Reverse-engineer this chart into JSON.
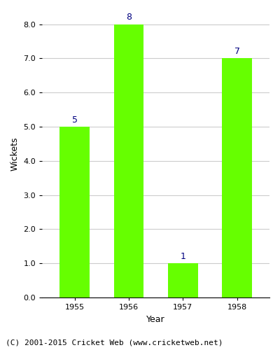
{
  "years": [
    "1955",
    "1956",
    "1957",
    "1958"
  ],
  "values": [
    5,
    8,
    1,
    7
  ],
  "bar_color": "#66ff00",
  "bar_edge_color": "#66ff00",
  "xlabel": "Year",
  "ylabel": "Wickets",
  "ylim": [
    0.0,
    8.4
  ],
  "yticks": [
    0.0,
    1.0,
    2.0,
    3.0,
    4.0,
    5.0,
    6.0,
    7.0,
    8.0
  ],
  "label_color": "#000080",
  "label_fontsize": 9,
  "footnote": "(C) 2001-2015 Cricket Web (www.cricketweb.net)",
  "footnote_fontsize": 8,
  "axis_label_fontsize": 9,
  "tick_fontsize": 8,
  "background_color": "#ffffff",
  "grid_color": "#cccccc",
  "bar_width": 0.55
}
